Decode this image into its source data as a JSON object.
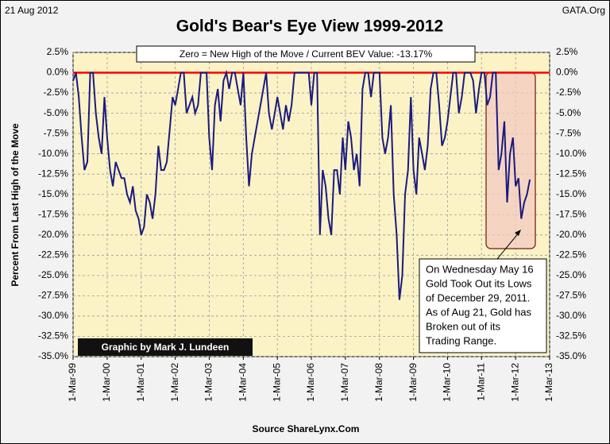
{
  "chart_data": {
    "type": "line",
    "title": "Gold's Bear's Eye View 1999-2012",
    "date_label": "21 Aug 2012",
    "site_label": "GATA.Org",
    "subtitle": "Zero = New High of the Move / Current BEV Value:  -13.17%",
    "y_label": "Percent From Last High of the Move",
    "credit": "Graphic by Mark J. Lundeen",
    "source": "Source ShareLynx.Com",
    "annotation": [
      "On Wednesday May 16",
      "Gold Took Out its Lows",
      "of December 29, 2011.",
      "As of Aug 21, Gold has",
      "Broken out of its",
      "Trading Range."
    ],
    "reference_line": {
      "value": 0,
      "color": "#ff0000"
    },
    "x": [
      "1999-03",
      "1999-04",
      "1999-05",
      "1999-06",
      "1999-07",
      "1999-08",
      "1999-09",
      "1999-10",
      "1999-11",
      "1999-12",
      "2000-01",
      "2000-02",
      "2000-03",
      "2000-04",
      "2000-05",
      "2000-06",
      "2000-07",
      "2000-08",
      "2000-09",
      "2000-10",
      "2000-11",
      "2000-12",
      "2001-01",
      "2001-02",
      "2001-03",
      "2001-04",
      "2001-05",
      "2001-06",
      "2001-07",
      "2001-08",
      "2001-09",
      "2001-10",
      "2001-11",
      "2001-12",
      "2002-01",
      "2002-02",
      "2002-03",
      "2002-04",
      "2002-05",
      "2002-06",
      "2002-07",
      "2002-08",
      "2002-09",
      "2002-10",
      "2002-11",
      "2002-12",
      "2003-01",
      "2003-02",
      "2003-03",
      "2003-04",
      "2003-05",
      "2003-06",
      "2003-07",
      "2003-08",
      "2003-09",
      "2003-10",
      "2003-11",
      "2003-12",
      "2004-01",
      "2004-02",
      "2004-03",
      "2004-04",
      "2004-05",
      "2004-06",
      "2004-07",
      "2004-08",
      "2004-09",
      "2004-10",
      "2004-11",
      "2004-12",
      "2005-01",
      "2005-02",
      "2005-03",
      "2005-04",
      "2005-05",
      "2005-06",
      "2005-07",
      "2005-08",
      "2005-09",
      "2005-10",
      "2005-11",
      "2005-12",
      "2006-01",
      "2006-02",
      "2006-03",
      "2006-04",
      "2006-05",
      "2006-06",
      "2006-07",
      "2006-08",
      "2006-09",
      "2006-10",
      "2006-11",
      "2006-12",
      "2007-01",
      "2007-02",
      "2007-03",
      "2007-04",
      "2007-05",
      "2007-06",
      "2007-07",
      "2007-08",
      "2007-09",
      "2007-10",
      "2007-11",
      "2007-12",
      "2008-01",
      "2008-02",
      "2008-03",
      "2008-04",
      "2008-05",
      "2008-06",
      "2008-07",
      "2008-08",
      "2008-09",
      "2008-10",
      "2008-11",
      "2008-12",
      "2009-01",
      "2009-02",
      "2009-03",
      "2009-04",
      "2009-05",
      "2009-06",
      "2009-07",
      "2009-08",
      "2009-09",
      "2009-10",
      "2009-11",
      "2009-12",
      "2010-01",
      "2010-02",
      "2010-03",
      "2010-04",
      "2010-05",
      "2010-06",
      "2010-07",
      "2010-08",
      "2010-09",
      "2010-10",
      "2010-11",
      "2010-12",
      "2011-01",
      "2011-02",
      "2011-03",
      "2011-04",
      "2011-05",
      "2011-06",
      "2011-07",
      "2011-08",
      "2011-09",
      "2011-10",
      "2011-11",
      "2011-12",
      "2012-01",
      "2012-02",
      "2012-03",
      "2012-04",
      "2012-05",
      "2012-06",
      "2012-07",
      "2012-08"
    ],
    "series": [
      {
        "name": "BEV",
        "color": "#1a1a80",
        "values": [
          -1,
          0,
          -3,
          -8,
          -12,
          -11,
          0,
          0,
          -5,
          -8,
          -10,
          -3,
          -8,
          -12,
          -14,
          -11,
          -12,
          -13,
          -13,
          -15,
          -16,
          -14,
          -17,
          -18,
          -20,
          -19,
          -15,
          -16,
          -18,
          -15,
          -9,
          -12,
          -12,
          -11,
          -7,
          -3,
          -4,
          -2,
          0,
          0,
          -5,
          -4,
          -3,
          -5,
          -4,
          0,
          0,
          0,
          -8,
          -12,
          -4,
          -2,
          -6,
          -1,
          0,
          -2,
          0,
          0,
          -2,
          -4,
          0,
          -8,
          -14,
          -10,
          -8,
          -6,
          -4,
          -2,
          0,
          -5,
          -7,
          -5,
          -3,
          -5,
          -7,
          -4,
          -6,
          -4,
          0,
          0,
          0,
          0,
          0,
          0,
          -4,
          0,
          0,
          -20,
          -12,
          -14,
          -18,
          -20,
          -12,
          -12,
          -15,
          -8,
          -12,
          -6,
          -8,
          -12,
          -10,
          -14,
          -2,
          0,
          0,
          -3,
          0,
          0,
          0,
          -8,
          -10,
          -8,
          -4,
          -15,
          -20,
          -28,
          -25,
          -15,
          -12,
          -3,
          -12,
          -15,
          -8,
          -10,
          -12,
          -9,
          -2,
          0,
          0,
          -4,
          -9,
          -8,
          -6,
          -3,
          0,
          0,
          -5,
          -3,
          0,
          0,
          0,
          -1,
          -5,
          -2,
          0,
          0,
          -4,
          -3,
          0,
          0,
          -12,
          -10,
          -6,
          -16,
          -10,
          -8,
          -14,
          -13,
          -18,
          -16,
          -15,
          -13.17
        ]
      }
    ],
    "xlim": [
      "1999-03-01",
      "2013-03-01"
    ],
    "xticks": [
      {
        "value": "1999-03-01",
        "label": "1-Mar-99"
      },
      {
        "value": "2000-03-01",
        "label": "1-Mar-00"
      },
      {
        "value": "2001-03-01",
        "label": "1-Mar-01"
      },
      {
        "value": "2002-03-01",
        "label": "1-Mar-02"
      },
      {
        "value": "2003-03-01",
        "label": "1-Mar-03"
      },
      {
        "value": "2004-03-01",
        "label": "1-Mar-04"
      },
      {
        "value": "2005-03-01",
        "label": "1-Mar-05"
      },
      {
        "value": "2006-03-01",
        "label": "1-Mar-06"
      },
      {
        "value": "2007-03-01",
        "label": "1-Mar-07"
      },
      {
        "value": "2008-03-01",
        "label": "1-Mar-08"
      },
      {
        "value": "2009-03-01",
        "label": "1-Mar-09"
      },
      {
        "value": "2010-03-01",
        "label": "1-Mar-10"
      },
      {
        "value": "2011-03-01",
        "label": "1-Mar-11"
      },
      {
        "value": "2012-03-01",
        "label": "1-Mar-12"
      },
      {
        "value": "2013-03-01",
        "label": "1-Mar-13"
      }
    ],
    "ylim": [
      -35,
      2.5
    ],
    "yticks": [
      {
        "value": 2.5,
        "label": "2.5%"
      },
      {
        "value": 0,
        "label": "0.0%"
      },
      {
        "value": -2.5,
        "label": "-2.5%"
      },
      {
        "value": -5,
        "label": "-5.0%"
      },
      {
        "value": -7.5,
        "label": "-7.5%"
      },
      {
        "value": -10,
        "label": "-10.0%"
      },
      {
        "value": -12.5,
        "label": "-12.5%"
      },
      {
        "value": -15,
        "label": "-15.0%"
      },
      {
        "value": -17.5,
        "label": "-17.5%"
      },
      {
        "value": -20,
        "label": "-20.0%"
      },
      {
        "value": -22.5,
        "label": "-22.5%"
      },
      {
        "value": -25,
        "label": "-25.0%"
      },
      {
        "value": -27.5,
        "label": "-27.5%"
      },
      {
        "value": -30,
        "label": "-30.0%"
      },
      {
        "value": -32.5,
        "label": "-32.5%"
      },
      {
        "value": -35,
        "label": "-35.0%"
      }
    ],
    "grid": true,
    "background": "#fbf3c6"
  }
}
